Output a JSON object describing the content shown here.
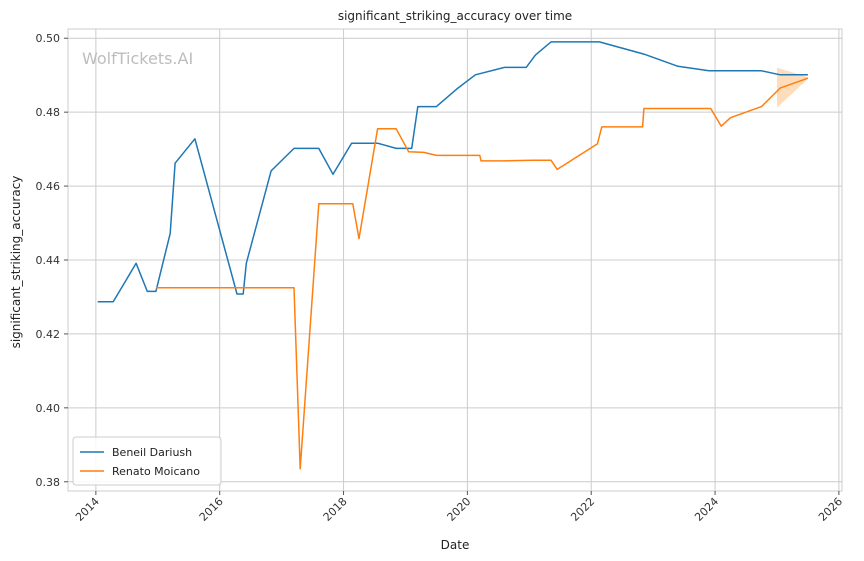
{
  "chart_data": {
    "type": "line",
    "title": "significant_striking_accuracy over time",
    "xlabel": "Date",
    "ylabel": "significant_striking_accuracy",
    "watermark": "WolfTickets.AI",
    "xlim": [
      2013.55,
      2026.05
    ],
    "ylim": [
      0.3775,
      0.5025
    ],
    "xticks": [
      2014,
      2016,
      2018,
      2020,
      2022,
      2024,
      2026
    ],
    "xtick_labels": [
      "2014",
      "2016",
      "2018",
      "2020",
      "2022",
      "2024",
      "2026"
    ],
    "yticks": [
      0.38,
      0.4,
      0.42,
      0.44,
      0.46,
      0.48,
      0.5
    ],
    "ytick_labels": [
      "0.38",
      "0.40",
      "0.42",
      "0.44",
      "0.46",
      "0.48",
      "0.50"
    ],
    "grid": true,
    "legend_position": "lower-left",
    "series": [
      {
        "name": "Beneil Dariush",
        "color": "#1f77b4",
        "points": [
          [
            2014.03,
            0.4287
          ],
          [
            2014.28,
            0.4287
          ],
          [
            2014.65,
            0.4391
          ],
          [
            2014.83,
            0.4315
          ],
          [
            2014.97,
            0.4315
          ],
          [
            2015.2,
            0.4472
          ],
          [
            2015.28,
            0.4662
          ],
          [
            2015.6,
            0.4728
          ],
          [
            2016.28,
            0.4308
          ],
          [
            2016.38,
            0.4308
          ],
          [
            2016.43,
            0.4391
          ],
          [
            2016.83,
            0.4641
          ],
          [
            2017.2,
            0.4702
          ],
          [
            2017.6,
            0.4702
          ],
          [
            2017.83,
            0.4632
          ],
          [
            2018.13,
            0.4716
          ],
          [
            2018.55,
            0.4716
          ],
          [
            2018.85,
            0.4702
          ],
          [
            2019.1,
            0.4702
          ],
          [
            2019.2,
            0.4815
          ],
          [
            2019.5,
            0.4815
          ],
          [
            2019.83,
            0.4863
          ],
          [
            2020.13,
            0.4901
          ],
          [
            2020.6,
            0.4921
          ],
          [
            2020.95,
            0.4921
          ],
          [
            2021.1,
            0.4955
          ],
          [
            2021.35,
            0.499
          ],
          [
            2022.13,
            0.499
          ],
          [
            2022.85,
            0.4957
          ],
          [
            2023.4,
            0.4924
          ],
          [
            2023.9,
            0.4912
          ],
          [
            2024.75,
            0.4912
          ],
          [
            2025.05,
            0.4901
          ],
          [
            2025.5,
            0.4901
          ]
        ]
      },
      {
        "name": "Renato Moicano",
        "color": "#ff7f0e",
        "points": [
          [
            2014.97,
            0.4325
          ],
          [
            2017.2,
            0.4325
          ],
          [
            2017.3,
            0.3835
          ],
          [
            2017.6,
            0.4552
          ],
          [
            2018.15,
            0.4552
          ],
          [
            2018.25,
            0.4458
          ],
          [
            2018.55,
            0.4755
          ],
          [
            2018.85,
            0.4755
          ],
          [
            2019.05,
            0.4693
          ],
          [
            2019.3,
            0.4691
          ],
          [
            2019.5,
            0.4683
          ],
          [
            2020.2,
            0.4683
          ],
          [
            2020.22,
            0.4668
          ],
          [
            2020.6,
            0.4668
          ],
          [
            2021.05,
            0.467
          ],
          [
            2021.35,
            0.467
          ],
          [
            2021.45,
            0.4645
          ],
          [
            2022.1,
            0.4714
          ],
          [
            2022.17,
            0.476
          ],
          [
            2022.83,
            0.476
          ],
          [
            2022.85,
            0.481
          ],
          [
            2023.93,
            0.481
          ],
          [
            2024.1,
            0.4762
          ],
          [
            2024.25,
            0.4785
          ],
          [
            2024.75,
            0.4815
          ],
          [
            2025.05,
            0.4865
          ],
          [
            2025.5,
            0.4892
          ]
        ]
      }
    ],
    "forecast_band": {
      "color": "#ffbb78",
      "upper": [
        [
          2025.0,
          0.492
        ],
        [
          2025.5,
          0.4895
        ]
      ],
      "lower": [
        [
          2025.0,
          0.4812
        ],
        [
          2025.5,
          0.489
        ]
      ]
    }
  }
}
